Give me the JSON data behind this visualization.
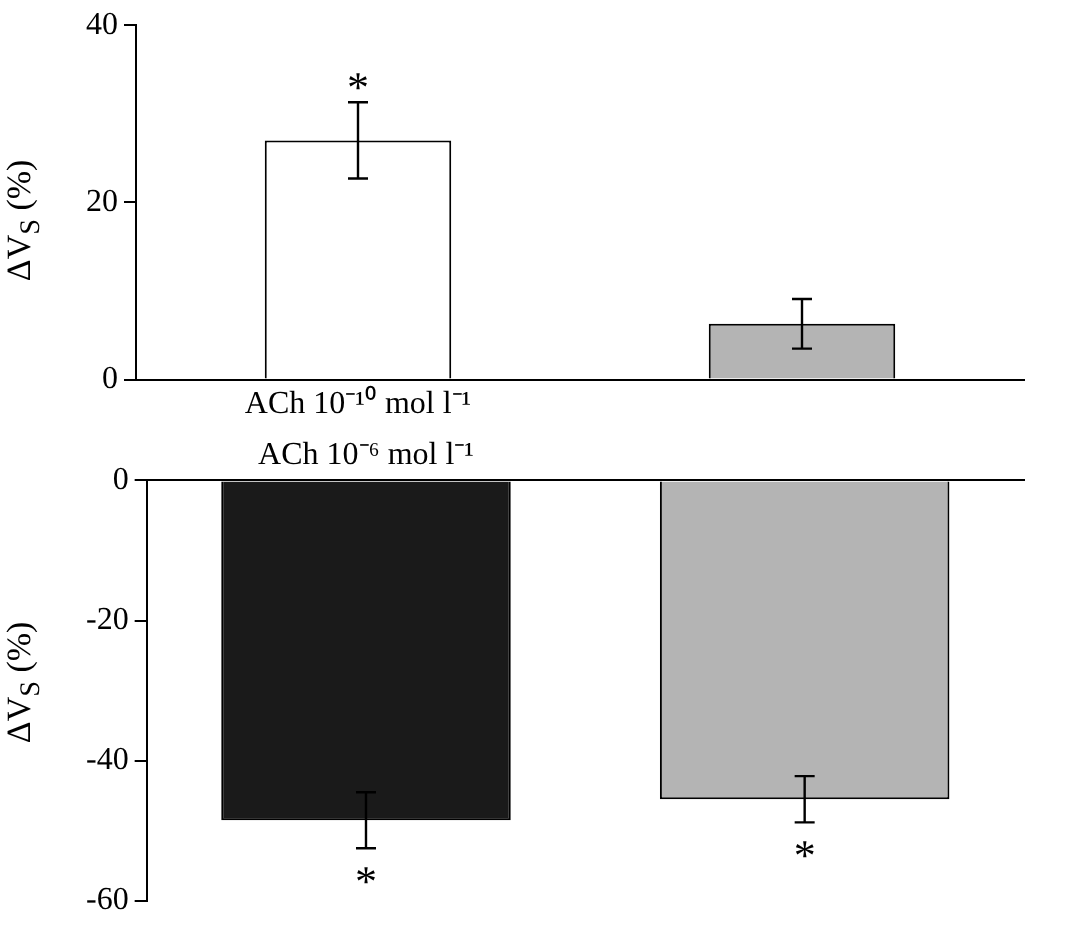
{
  "chart_data": [
    {
      "type": "bar",
      "ylabel": "ΔV$_{S}$ (%)",
      "categories": [
        "ACh 10⁻¹⁰ mol l⁻¹",
        null
      ],
      "colors": [
        "#ffffff",
        "#b4b4b4"
      ],
      "values": [
        27,
        6.3
      ],
      "errors": [
        4.3,
        2.8
      ],
      "ylim": [
        0,
        40
      ],
      "yticks": [
        0,
        20,
        40
      ],
      "grid": false,
      "legend": false,
      "annotations": [
        "*"
      ]
    },
    {
      "type": "bar",
      "ylabel": "ΔV$_{S}$ (%)",
      "categories": [
        "ACh 10⁻⁶ mol l⁻¹",
        null
      ],
      "colors": [
        "#1a1a1a",
        "#b4b4b4"
      ],
      "values": [
        -48.5,
        -45.5
      ],
      "errors": [
        4,
        3.3
      ],
      "ylim": [
        -60,
        0
      ],
      "yticks": [
        -60,
        -40,
        -20,
        0
      ],
      "grid": false,
      "legend": false,
      "annotations": [
        "*",
        "*"
      ]
    }
  ]
}
